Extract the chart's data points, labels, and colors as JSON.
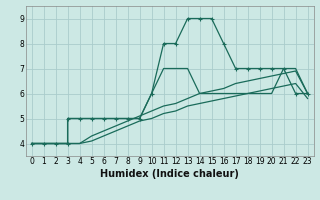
{
  "xlabel": "Humidex (Indice chaleur)",
  "bg_color": "#cce8e4",
  "grid_color": "#aacccc",
  "line_color": "#1a6b5a",
  "xlim": [
    -0.5,
    23.5
  ],
  "ylim": [
    3.5,
    9.5
  ],
  "xticks": [
    0,
    1,
    2,
    3,
    4,
    5,
    6,
    7,
    8,
    9,
    10,
    11,
    12,
    13,
    14,
    15,
    16,
    17,
    18,
    19,
    20,
    21,
    22,
    23
  ],
  "yticks": [
    4,
    5,
    6,
    7,
    8,
    9
  ],
  "lines": [
    {
      "x": [
        0,
        1,
        2,
        3,
        3,
        4,
        5,
        6,
        7,
        8,
        9,
        10,
        11,
        12,
        13,
        14,
        15,
        16,
        17,
        18,
        19,
        20,
        21,
        22,
        23
      ],
      "y": [
        4,
        4,
        4,
        4,
        5,
        5,
        5,
        5,
        5,
        5,
        5,
        6,
        8,
        8,
        9,
        9,
        9,
        8,
        7,
        7,
        7,
        7,
        7,
        6,
        6
      ],
      "has_markers": true
    },
    {
      "x": [
        0,
        1,
        2,
        3,
        3,
        4,
        5,
        6,
        7,
        8,
        9,
        10,
        11,
        12,
        13,
        14,
        15,
        16,
        17,
        18,
        19,
        20,
        21,
        22,
        23
      ],
      "y": [
        4,
        4,
        4,
        4,
        5,
        5,
        5,
        5,
        5,
        5,
        5,
        6,
        7,
        7,
        7,
        6,
        6,
        6,
        6,
        6,
        6,
        6,
        7,
        7,
        6
      ],
      "has_markers": false
    },
    {
      "x": [
        0,
        1,
        2,
        3,
        4,
        5,
        6,
        7,
        8,
        9,
        10,
        11,
        12,
        13,
        14,
        15,
        16,
        17,
        18,
        19,
        20,
        21,
        22,
        23
      ],
      "y": [
        4,
        4,
        4,
        4,
        4,
        4.3,
        4.5,
        4.7,
        4.9,
        5.1,
        5.3,
        5.5,
        5.6,
        5.8,
        6.0,
        6.1,
        6.2,
        6.4,
        6.5,
        6.6,
        6.7,
        6.8,
        6.9,
        6.0
      ],
      "has_markers": false
    },
    {
      "x": [
        0,
        1,
        2,
        3,
        4,
        5,
        6,
        7,
        8,
        9,
        10,
        11,
        12,
        13,
        14,
        15,
        16,
        17,
        18,
        19,
        20,
        21,
        22,
        23
      ],
      "y": [
        4,
        4,
        4,
        4,
        4,
        4.1,
        4.3,
        4.5,
        4.7,
        4.9,
        5.0,
        5.2,
        5.3,
        5.5,
        5.6,
        5.7,
        5.8,
        5.9,
        6.0,
        6.1,
        6.2,
        6.3,
        6.4,
        5.8
      ],
      "has_markers": false
    }
  ],
  "linewidth": 0.9,
  "markersize": 3,
  "xlabel_fontsize": 7,
  "tick_fontsize": 5.5
}
